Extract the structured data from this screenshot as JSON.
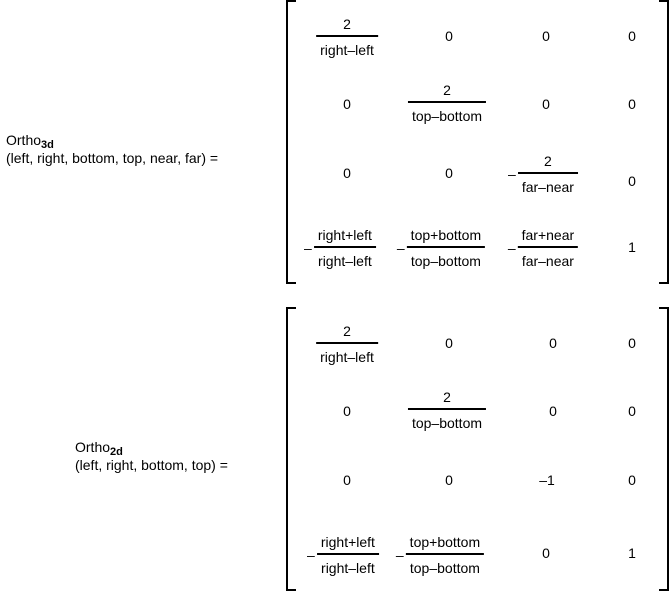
{
  "ortho3d": {
    "name": "Ortho",
    "subscript": "3d",
    "args": "(left, right, bottom, top, near, far) =",
    "row1": {
      "c1_num": "2",
      "c1_den": "right–left",
      "c2": "0",
      "c3": "0",
      "c4": "0"
    },
    "row2": {
      "c1": "0",
      "c2_num": "2",
      "c2_den": "top–bottom",
      "c3": "0",
      "c4": "0"
    },
    "row3": {
      "c1": "0",
      "c2": "0",
      "c3_sign": "–",
      "c3_num": "2",
      "c3_den": "far–near",
      "c4": "0"
    },
    "row4": {
      "c1_sign": "–",
      "c1_num": "right+left",
      "c1_den": "right–left",
      "c2_sign": "–",
      "c2_num": "top+bottom",
      "c2_den": "top–bottom",
      "c3_sign": "–",
      "c3_num": "far+near",
      "c3_den": "far–near",
      "c4": "1"
    }
  },
  "ortho2d": {
    "name": "Ortho",
    "subscript": "2d",
    "args": "(left, right, bottom, top) =",
    "row1": {
      "c1_num": "2",
      "c1_den": "right–left",
      "c2": "0",
      "c3": "0",
      "c4": "0"
    },
    "row2": {
      "c1": "0",
      "c2_num": "2",
      "c2_den": "top–bottom",
      "c3": "0",
      "c4": "0"
    },
    "row3": {
      "c1": "0",
      "c2": "0",
      "c3": "–1",
      "c4": "0"
    },
    "row4": {
      "c1_sign": "–",
      "c1_num": "right+left",
      "c1_den": "right–left",
      "c2_sign": "–",
      "c2_num": "top+bottom",
      "c2_den": "top–bottom",
      "c3": "0",
      "c4": "1"
    }
  }
}
